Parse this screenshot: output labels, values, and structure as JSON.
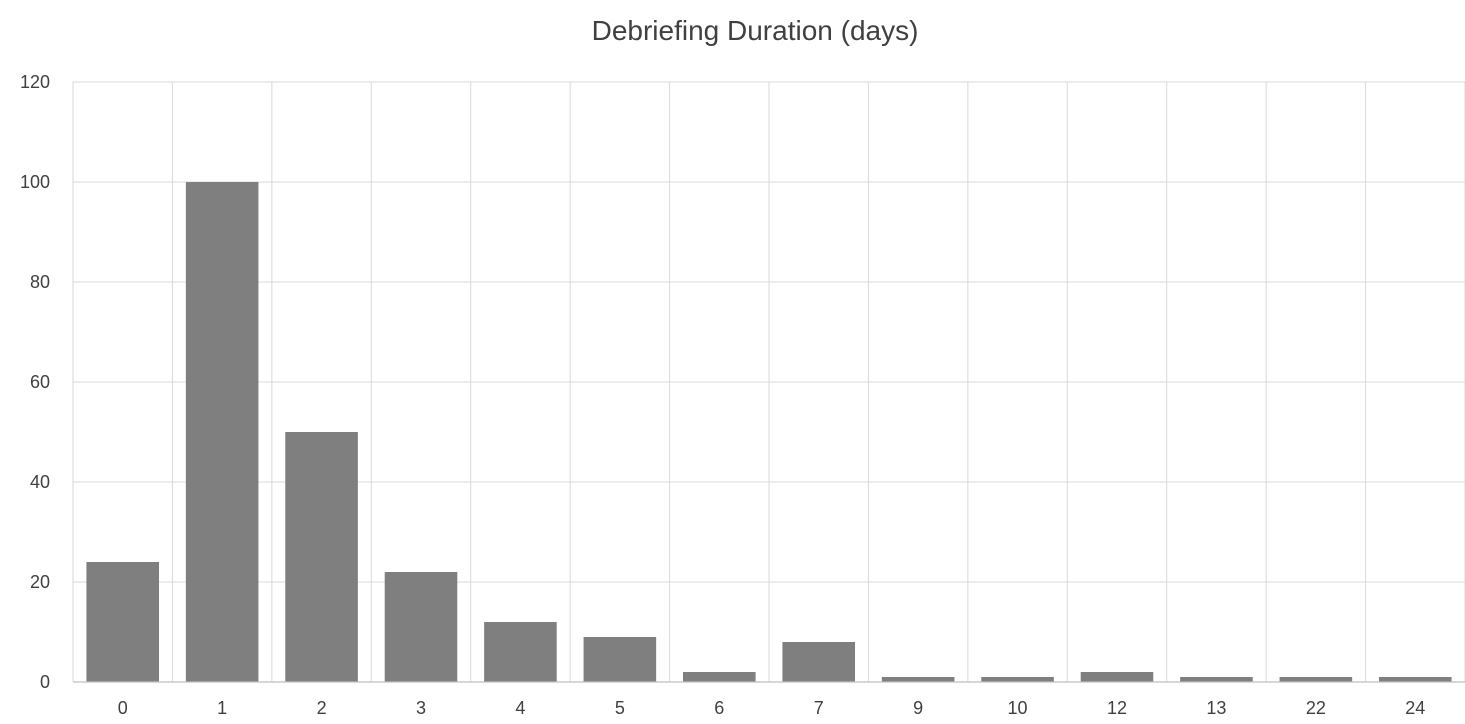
{
  "chart_data": {
    "type": "bar",
    "title": "Debriefing Duration (days)",
    "xlabel": "",
    "ylabel": "",
    "categories": [
      "0",
      "1",
      "2",
      "3",
      "4",
      "5",
      "6",
      "7",
      "9",
      "10",
      "12",
      "13",
      "22",
      "24"
    ],
    "values": [
      24,
      100,
      50,
      22,
      12,
      9,
      2,
      8,
      1,
      1,
      2,
      1,
      1,
      1
    ],
    "ylim": [
      0,
      120
    ],
    "yticks": [
      0,
      20,
      40,
      60,
      80,
      100,
      120
    ],
    "grid": {
      "horizontal": true,
      "vertical": true
    },
    "legend": "none",
    "colors": {
      "bar": "#7f7f7f"
    }
  }
}
